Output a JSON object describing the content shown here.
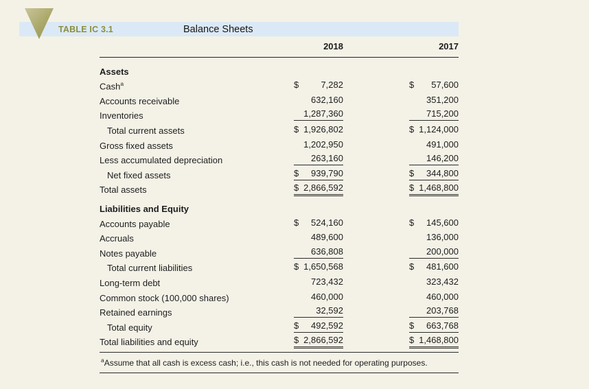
{
  "figure": {
    "label": "TABLE IC 3.1",
    "title": "Balance Sheets",
    "columns": [
      "2018",
      "2017"
    ],
    "footnote": {
      "marker": "a",
      "text": "Assume that all cash is excess cash; i.e., this cash is not needed for operating purposes."
    }
  },
  "colors": {
    "page_bg": "#f4f2e7",
    "band_blue": "#dbe9f6",
    "accent_olive": "#8a8f3c",
    "rule": "#2a2a2a"
  },
  "rows": [
    {
      "section": true,
      "label": "Assets"
    },
    {
      "label": "Cash",
      "sup": "a",
      "v18": "7,282",
      "d18": true,
      "v17": "57,600",
      "d17": true
    },
    {
      "label": "Accounts receivable",
      "v18": "632,160",
      "v17": "351,200"
    },
    {
      "label": "Inventories",
      "v18": "1,287,360",
      "v17": "715,200",
      "u": "single"
    },
    {
      "label": "Total current assets",
      "indent": true,
      "v18": "1,926,802",
      "d18": true,
      "v17": "1,124,000",
      "d17": true
    },
    {
      "label": "Gross fixed assets",
      "v18": "1,202,950",
      "v17": "491,000"
    },
    {
      "label": "Less accumulated depreciation",
      "v18": "263,160",
      "v17": "146,200",
      "u": "single"
    },
    {
      "label": "Net fixed assets",
      "indent": true,
      "v18": "939,790",
      "d18": true,
      "v17": "344,800",
      "d17": true,
      "u": "single"
    },
    {
      "label": "Total assets",
      "v18": "2,866,592",
      "d18": true,
      "v17": "1,468,800",
      "d17": true,
      "u": "double"
    },
    {
      "section": true,
      "label": "Liabilities and Equity"
    },
    {
      "label": "Accounts payable",
      "v18": "524,160",
      "d18": true,
      "v17": "145,600",
      "d17": true
    },
    {
      "label": "Accruals",
      "v18": "489,600",
      "v17": "136,000"
    },
    {
      "label": "Notes payable",
      "v18": "636,808",
      "v17": "200,000",
      "u": "single"
    },
    {
      "label": "Total current liabilities",
      "indent": true,
      "v18": "1,650,568",
      "d18": true,
      "v17": "481,600",
      "d17": true
    },
    {
      "label": "Long-term debt",
      "v18": "723,432",
      "v17": "323,432"
    },
    {
      "label": "Common stock (100,000 shares)",
      "v18": "460,000",
      "v17": "460,000"
    },
    {
      "label": "Retained earnings",
      "v18": "32,592",
      "v17": "203,768",
      "u": "single"
    },
    {
      "label": "Total equity",
      "indent": true,
      "v18": "492,592",
      "d18": true,
      "v17": "663,768",
      "d17": true,
      "u": "single"
    },
    {
      "label": "Total liabilities and equity",
      "v18": "2,866,592",
      "d18": true,
      "v17": "1,468,800",
      "d17": true,
      "u": "double"
    }
  ]
}
